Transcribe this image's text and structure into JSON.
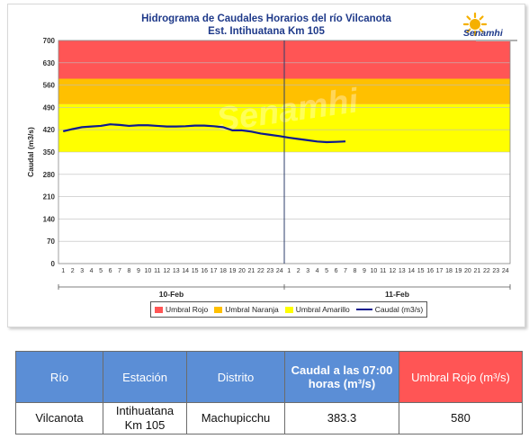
{
  "chart_data": {
    "type": "line",
    "title": "Hidrograma de Caudales Horarios del río Vilcanota",
    "subtitle": "Est. Intihuatana Km 105",
    "ylabel": "Caudal  (m3/s)",
    "xlabel": "",
    "ylim": [
      0,
      700
    ],
    "yticks": [
      0,
      70,
      140,
      210,
      280,
      350,
      420,
      490,
      560,
      630,
      700
    ],
    "hour_ticks": [
      "1",
      "2",
      "3",
      "4",
      "5",
      "6",
      "7",
      "8",
      "9",
      "10",
      "11",
      "12",
      "13",
      "14",
      "15",
      "16",
      "17",
      "18",
      "19",
      "20",
      "21",
      "22",
      "23",
      "24",
      "1",
      "2",
      "3",
      "4",
      "5",
      "6",
      "7",
      "8",
      "9",
      "10",
      "11",
      "12",
      "13",
      "14",
      "15",
      "16",
      "17",
      "18",
      "19",
      "20",
      "21",
      "22",
      "23",
      "24"
    ],
    "days": [
      "10-Feb",
      "11-Feb"
    ],
    "thresholds": [
      {
        "name": "Umbral Amarillo",
        "from": 350,
        "to": 500,
        "color": "#ffff00"
      },
      {
        "name": "Umbral Naranja",
        "from": 500,
        "to": 580,
        "color": "#ffc000"
      },
      {
        "name": "Umbral Rojo",
        "from": 580,
        "to": 700,
        "color": "#ff5555"
      }
    ],
    "series": [
      {
        "name": "Caudal (m3/s)",
        "color": "#0d1a8f",
        "x": [
          "10-Feb 01:00",
          "10-Feb 02:00",
          "10-Feb 03:00",
          "10-Feb 04:00",
          "10-Feb 05:00",
          "10-Feb 06:00",
          "10-Feb 07:00",
          "10-Feb 08:00",
          "10-Feb 09:00",
          "10-Feb 10:00",
          "10-Feb 11:00",
          "10-Feb 12:00",
          "10-Feb 13:00",
          "10-Feb 14:00",
          "10-Feb 15:00",
          "10-Feb 16:00",
          "10-Feb 17:00",
          "10-Feb 18:00",
          "10-Feb 19:00",
          "10-Feb 20:00",
          "10-Feb 21:00",
          "10-Feb 22:00",
          "10-Feb 23:00",
          "10-Feb 24:00",
          "11-Feb 01:00",
          "11-Feb 02:00",
          "11-Feb 03:00",
          "11-Feb 04:00",
          "11-Feb 05:00",
          "11-Feb 06:00",
          "11-Feb 07:00"
        ],
        "values": [
          415,
          422,
          428,
          430,
          432,
          437,
          435,
          432,
          434,
          434,
          432,
          430,
          430,
          431,
          433,
          433,
          431,
          428,
          418,
          418,
          414,
          408,
          404,
          400,
          395,
          391,
          387,
          383,
          381,
          382,
          383.3
        ]
      }
    ],
    "legend": [
      "Umbral Rojo",
      "Umbral Naranja",
      "Umbral Amarillo",
      "Caudal (m3/s)"
    ],
    "legend_position": "bottom",
    "watermark": "Senamhi"
  },
  "logo": {
    "name": "Senamhi"
  },
  "table": {
    "headers": [
      "Río",
      "Estación",
      "Distrito",
      "Caudal a las 07:00 horas (m³/s)",
      "Umbral Rojo (m³/s)"
    ],
    "header_colors": [
      "#5b8ed6",
      "#5b8ed6",
      "#5b8ed6",
      "#5b8ed6",
      "#ff5555"
    ],
    "row": [
      "Vilcanota",
      "Intihuatana Km 105",
      "Machupicchu",
      "383.3",
      "580"
    ]
  }
}
